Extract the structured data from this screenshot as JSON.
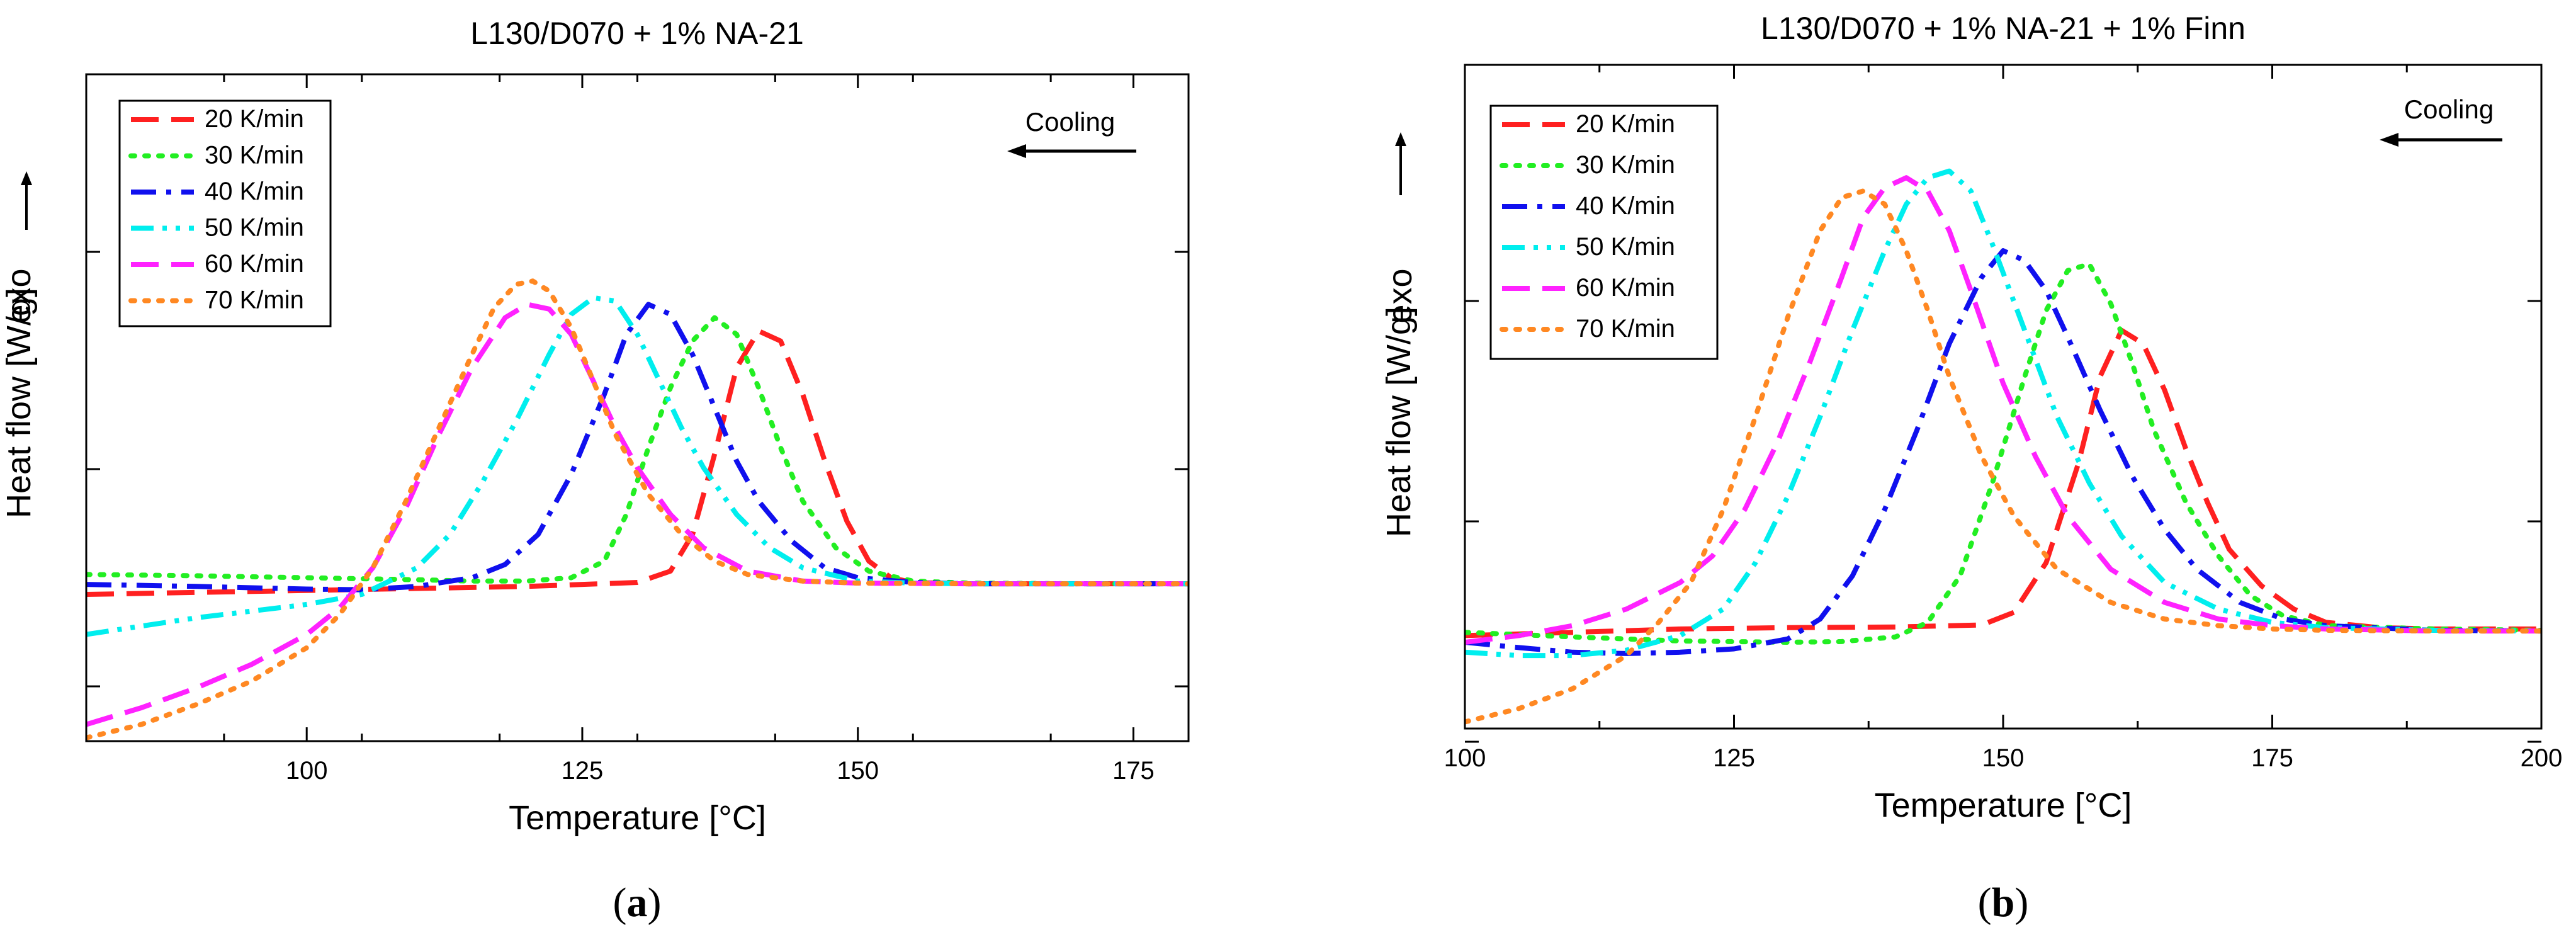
{
  "chart_data": [
    {
      "type": "line",
      "title": "L130/D070 + 1% NA-21",
      "caption": "(a)",
      "xlabel": "Temperature [°C]",
      "ylabel": "Heat flow [W/g]",
      "ylabel_note": "exo",
      "annotation": "Cooling",
      "xlim": [
        80,
        180
      ],
      "xticks": [
        100,
        125,
        150,
        175
      ],
      "ylim": [
        0,
        1
      ],
      "grid": false,
      "legend_position": "top-left",
      "series": [
        {
          "name": "20 K/min",
          "color": "#ff2020",
          "style": "dash",
          "x": [
            80,
            90,
            100,
            110,
            120,
            130,
            133,
            135,
            137,
            139,
            141,
            143,
            145,
            147,
            149,
            151,
            153,
            155,
            160,
            170,
            180
          ],
          "y": [
            0.22,
            0.223,
            0.226,
            0.229,
            0.232,
            0.238,
            0.255,
            0.31,
            0.43,
            0.56,
            0.615,
            0.6,
            0.52,
            0.42,
            0.33,
            0.27,
            0.245,
            0.238,
            0.236,
            0.236,
            0.236
          ]
        },
        {
          "name": "30 K/min",
          "color": "#22ee22",
          "style": "dot",
          "x": [
            80,
            90,
            100,
            110,
            115,
            120,
            124,
            127,
            129,
            131,
            133,
            135,
            137,
            139,
            141,
            143,
            145,
            148,
            151,
            155,
            160,
            170,
            180
          ],
          "y": [
            0.25,
            0.248,
            0.245,
            0.242,
            0.24,
            0.24,
            0.245,
            0.27,
            0.34,
            0.44,
            0.53,
            0.6,
            0.635,
            0.61,
            0.53,
            0.44,
            0.36,
            0.29,
            0.255,
            0.24,
            0.237,
            0.236,
            0.236
          ]
        },
        {
          "name": "40 K/min",
          "color": "#1010ee",
          "style": "dashdot",
          "x": [
            80,
            90,
            100,
            105,
            110,
            115,
            118,
            121,
            124,
            127,
            129,
            131,
            133,
            135,
            137,
            139,
            141,
            144,
            147,
            150,
            155,
            160,
            170,
            180
          ],
          "y": [
            0.235,
            0.232,
            0.228,
            0.227,
            0.232,
            0.245,
            0.265,
            0.31,
            0.4,
            0.52,
            0.61,
            0.655,
            0.64,
            0.58,
            0.5,
            0.42,
            0.36,
            0.3,
            0.26,
            0.245,
            0.238,
            0.236,
            0.236,
            0.236
          ]
        },
        {
          "name": "50 K/min",
          "color": "#00eeee",
          "style": "dashdotdot",
          "x": [
            80,
            90,
            100,
            105,
            110,
            113,
            116,
            119,
            122,
            124,
            126,
            128,
            130,
            132,
            134,
            136,
            139,
            142,
            145,
            150,
            155,
            160,
            170,
            180
          ],
          "y": [
            0.16,
            0.185,
            0.205,
            0.22,
            0.26,
            0.31,
            0.39,
            0.48,
            0.58,
            0.64,
            0.665,
            0.66,
            0.61,
            0.54,
            0.47,
            0.41,
            0.34,
            0.29,
            0.26,
            0.24,
            0.237,
            0.236,
            0.236,
            0.236
          ]
        },
        {
          "name": "60 K/min",
          "color": "#ff22ff",
          "style": "dash",
          "x": [
            80,
            85,
            90,
            95,
            100,
            103,
            106,
            109,
            112,
            115,
            118,
            120,
            122,
            124,
            126,
            128,
            130,
            133,
            136,
            140,
            145,
            150,
            160,
            170,
            180
          ],
          "y": [
            0.025,
            0.05,
            0.08,
            0.115,
            0.16,
            0.2,
            0.26,
            0.35,
            0.46,
            0.56,
            0.635,
            0.655,
            0.648,
            0.61,
            0.54,
            0.47,
            0.41,
            0.34,
            0.29,
            0.255,
            0.24,
            0.237,
            0.236,
            0.236,
            0.236
          ]
        },
        {
          "name": "70 K/min",
          "color": "#ff8822",
          "style": "dot",
          "x": [
            80,
            85,
            90,
            95,
            100,
            103,
            106,
            109,
            112,
            115,
            117,
            119,
            120.5,
            122,
            124,
            126,
            128,
            131,
            134,
            137,
            140,
            145,
            150,
            160,
            170,
            180
          ],
          "y": [
            0.005,
            0.025,
            0.055,
            0.09,
            0.14,
            0.19,
            0.26,
            0.36,
            0.47,
            0.58,
            0.65,
            0.685,
            0.69,
            0.675,
            0.62,
            0.54,
            0.46,
            0.37,
            0.31,
            0.27,
            0.25,
            0.24,
            0.237,
            0.236,
            0.236,
            0.236
          ]
        }
      ]
    },
    {
      "type": "line",
      "title": "L130/D070 + 1% NA-21 + 1% Finn",
      "caption": "(b)",
      "xlabel": "Temperature [°C]",
      "ylabel": "Heat flow [W/g]",
      "ylabel_note": "exo",
      "annotation": "Cooling",
      "xlim": [
        100,
        200
      ],
      "xticks": [
        100,
        125,
        150,
        175,
        200
      ],
      "ylim": [
        0,
        1
      ],
      "grid": false,
      "legend_position": "top-left",
      "series": [
        {
          "name": "20 K/min",
          "color": "#ff2020",
          "style": "dash",
          "x": [
            100,
            110,
            120,
            130,
            140,
            148,
            151,
            154,
            157,
            159,
            161,
            163,
            165,
            167,
            169,
            171,
            174,
            177,
            180,
            185,
            190,
            200
          ],
          "y": [
            0.14,
            0.145,
            0.15,
            0.152,
            0.153,
            0.156,
            0.175,
            0.25,
            0.4,
            0.53,
            0.6,
            0.58,
            0.51,
            0.42,
            0.34,
            0.27,
            0.215,
            0.18,
            0.16,
            0.152,
            0.15,
            0.15
          ]
        },
        {
          "name": "30 K/min",
          "color": "#22ee22",
          "style": "dot",
          "x": [
            100,
            110,
            120,
            130,
            135,
            140,
            143,
            146,
            149,
            152,
            154,
            156,
            158,
            160,
            162,
            164,
            167,
            170,
            173,
            176,
            180,
            190,
            200
          ],
          "y": [
            0.145,
            0.138,
            0.132,
            0.13,
            0.131,
            0.138,
            0.16,
            0.23,
            0.37,
            0.53,
            0.63,
            0.69,
            0.7,
            0.64,
            0.55,
            0.45,
            0.34,
            0.26,
            0.2,
            0.17,
            0.155,
            0.15,
            0.148
          ]
        },
        {
          "name": "40 K/min",
          "color": "#1010ee",
          "style": "dashdot",
          "x": [
            100,
            105,
            110,
            115,
            120,
            125,
            130,
            133,
            136,
            139,
            142,
            145,
            148,
            150,
            152,
            154,
            156,
            159,
            162,
            165,
            168,
            172,
            176,
            180,
            190,
            200
          ],
          "y": [
            0.13,
            0.122,
            0.115,
            0.113,
            0.115,
            0.12,
            0.135,
            0.165,
            0.23,
            0.33,
            0.45,
            0.58,
            0.68,
            0.72,
            0.705,
            0.66,
            0.59,
            0.48,
            0.38,
            0.3,
            0.24,
            0.19,
            0.165,
            0.155,
            0.148,
            0.147
          ]
        },
        {
          "name": "50 K/min",
          "color": "#00eeee",
          "style": "dashdotdot",
          "x": [
            100,
            105,
            110,
            115,
            120,
            124,
            127,
            130,
            133,
            136,
            139,
            141,
            143,
            145,
            147,
            149,
            152,
            155,
            158,
            161,
            165,
            170,
            175,
            180,
            190,
            200
          ],
          "y": [
            0.115,
            0.11,
            0.11,
            0.118,
            0.14,
            0.18,
            0.25,
            0.35,
            0.47,
            0.6,
            0.72,
            0.79,
            0.83,
            0.84,
            0.81,
            0.73,
            0.6,
            0.47,
            0.37,
            0.29,
            0.22,
            0.18,
            0.16,
            0.152,
            0.148,
            0.147
          ]
        },
        {
          "name": "60 K/min",
          "color": "#ff22ff",
          "style": "dash",
          "x": [
            100,
            105,
            110,
            115,
            120,
            123,
            126,
            129,
            132,
            135,
            137,
            139,
            141,
            143,
            145,
            147,
            150,
            153,
            156,
            160,
            165,
            170,
            175,
            180,
            190,
            200
          ],
          "y": [
            0.13,
            0.14,
            0.155,
            0.18,
            0.22,
            0.26,
            0.33,
            0.43,
            0.55,
            0.68,
            0.77,
            0.815,
            0.83,
            0.81,
            0.75,
            0.66,
            0.52,
            0.41,
            0.32,
            0.24,
            0.19,
            0.165,
            0.155,
            0.15,
            0.147,
            0.147
          ]
        },
        {
          "name": "70 K/min",
          "color": "#ff8822",
          "style": "dot",
          "x": [
            100,
            105,
            110,
            115,
            118,
            121,
            124,
            127,
            130,
            133,
            135,
            137,
            139,
            141,
            143,
            145,
            148,
            151,
            155,
            160,
            165,
            170,
            175,
            180,
            190,
            200
          ],
          "y": [
            0.01,
            0.03,
            0.06,
            0.11,
            0.16,
            0.22,
            0.33,
            0.47,
            0.62,
            0.75,
            0.8,
            0.81,
            0.79,
            0.72,
            0.63,
            0.53,
            0.41,
            0.32,
            0.24,
            0.19,
            0.165,
            0.155,
            0.15,
            0.148,
            0.147,
            0.147
          ]
        }
      ]
    }
  ]
}
